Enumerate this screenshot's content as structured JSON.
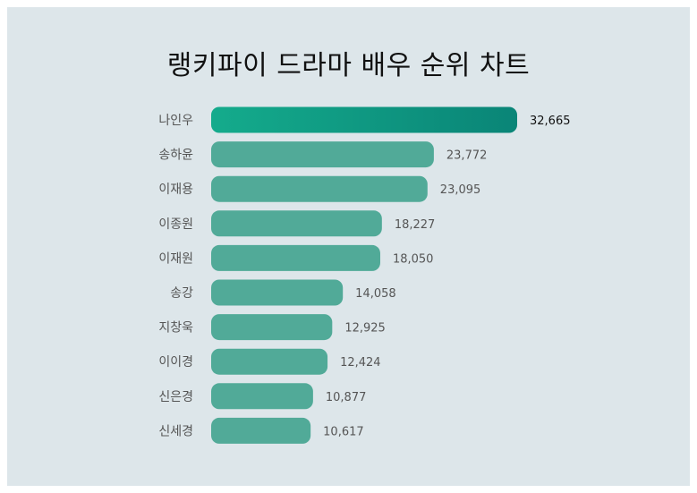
{
  "colors": {
    "background": "#dde6ea",
    "bar": "#51aa98",
    "top_bar_start": "#14ab8c",
    "top_bar_end": "#0a8577"
  },
  "chart_data": {
    "type": "bar",
    "orientation": "horizontal",
    "title": "랭키파이 드라마 배우 순위 차트",
    "categories": [
      "나인우",
      "송하윤",
      "이재용",
      "이종원",
      "이재원",
      "송강",
      "지창욱",
      "이이경",
      "신은경",
      "신세경"
    ],
    "values": [
      32665,
      23772,
      23095,
      18227,
      18050,
      14058,
      12925,
      12424,
      10877,
      10617
    ],
    "value_labels": [
      "32,665",
      "23,772",
      "23,095",
      "18,227",
      "18,050",
      "14,058",
      "12,925",
      "12,424",
      "10,877",
      "10,617"
    ],
    "xlim": [
      0,
      32665
    ],
    "grid": false,
    "legend": "none"
  }
}
